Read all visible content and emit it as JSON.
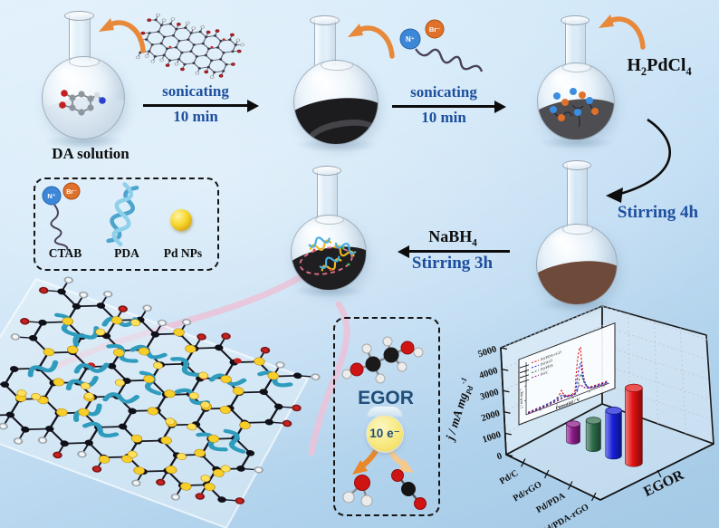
{
  "figure": {
    "steps": {
      "da_label": "DA solution",
      "arrow1": {
        "top": "sonicating",
        "bottom": "10 min"
      },
      "arrow2": {
        "top": "sonicating",
        "bottom": "10 min"
      },
      "h2pdcl4": {
        "p1": "H",
        "s1": "2",
        "p2": "PdCl",
        "s2": "4"
      },
      "stirring4h": "Stirring 4h",
      "nabh4": {
        "p1": "NaBH",
        "s1": "4"
      },
      "stirring3h": "Stirring 3h"
    },
    "legend": {
      "ctab": "CTAB",
      "pda": "PDA",
      "pdnps": "Pd NPs",
      "n_plus": "N⁺",
      "br_minus": "Br⁻"
    },
    "ctab_top": {
      "n_plus": "N⁺",
      "br_minus": "Br⁻"
    },
    "egor": {
      "title": "EGOR",
      "electrons": "10 e⁻"
    }
  },
  "chart_data": {
    "type": "bar",
    "categories": [
      "Pd/C",
      "Pd/rGO",
      "Pd/PDA",
      "Pd/PDA-rGO"
    ],
    "values": [
      800,
      1300,
      2100,
      3500
    ],
    "bar_colors": [
      "#8a1a88",
      "#2e6b4c",
      "#1620d8",
      "#e21212"
    ],
    "ylabel_main": "j / mA mg",
    "ylabel_sub": "Pd",
    "ylabel_sup": "-1",
    "ylim": [
      0,
      5000
    ],
    "yticks": [
      0,
      1000,
      2000,
      3000,
      4000,
      5000
    ],
    "x2label": "EGOR",
    "grid": true,
    "inset": {
      "xlabel": "Potential / V",
      "ylabel": "j / mA mg⁻¹",
      "legend": [
        {
          "label": "Pd/PDA-rGO",
          "color": "#e21212"
        },
        {
          "label": "Pd/rGO",
          "color": "#1620d8"
        },
        {
          "label": "Pd/PDA",
          "color": "#2e6b4c"
        },
        {
          "label": "Pd/C",
          "color": "#8a1a88"
        }
      ]
    }
  }
}
